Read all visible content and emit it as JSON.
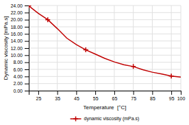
{
  "chart_data": {
    "type": "line",
    "xlabel": "Temperature  [°C]",
    "ylabel": "Dynamic viscosity [mPa.s]",
    "series": [
      {
        "name": "dynamic viscosity (mPa.s)",
        "type": "line",
        "line_style": "solid",
        "color": "#c00000",
        "x": [
          20,
          25,
          30,
          35,
          40,
          45,
          50,
          55,
          60,
          65,
          70,
          75,
          80,
          85,
          90,
          95,
          100
        ],
        "values": [
          23.9,
          21.8,
          20.0,
          17.5,
          14.8,
          13.0,
          11.5,
          10.3,
          9.1,
          8.1,
          7.3,
          6.8,
          5.9,
          5.2,
          4.7,
          4.1,
          3.8
        ]
      },
      {
        "type": "scatter",
        "marker": "plus",
        "color": "#c00000",
        "x": [
          20,
          30,
          50,
          75,
          95
        ],
        "values": [
          23.9,
          20.0,
          11.5,
          6.8,
          4.1
        ]
      }
    ],
    "xlim": [
      20,
      100
    ],
    "ylim": [
      0,
      24
    ],
    "xticks": [
      25,
      35,
      45,
      55,
      65,
      75,
      85,
      95,
      100
    ],
    "yticks": [
      {
        "value": 0,
        "label": "0.00"
      },
      {
        "value": 2,
        "label": "2.00"
      },
      {
        "value": 4,
        "label": "4.00"
      },
      {
        "value": 6,
        "label": "6.00"
      },
      {
        "value": 8,
        "label": "8.00"
      },
      {
        "value": 10,
        "label": "10.00"
      },
      {
        "value": 12,
        "label": "12.00"
      },
      {
        "value": 14,
        "label": "14.00"
      },
      {
        "value": 16,
        "label": "16.00"
      },
      {
        "value": 18,
        "label": "18.00"
      },
      {
        "value": 20,
        "label": "20.00"
      },
      {
        "value": 22,
        "label": "22.00"
      },
      {
        "value": 24,
        "label": "24.00"
      }
    ],
    "grid": true,
    "legend": "bottom"
  }
}
